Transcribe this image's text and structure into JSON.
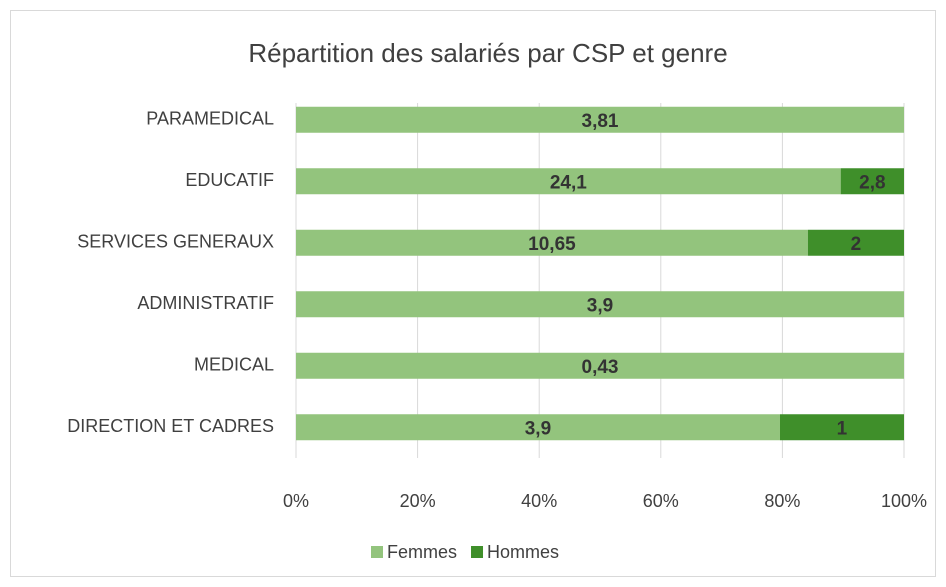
{
  "chart_data": {
    "type": "bar",
    "orientation": "horizontal",
    "stacked": "percent",
    "title": "Répartition des salariés par CSP et genre",
    "categories": [
      "PARAMEDICAL",
      "EDUCATIF",
      "SERVICES GENERAUX",
      "ADMINISTRATIF",
      "MEDICAL",
      "DIRECTION ET CADRES"
    ],
    "series": [
      {
        "name": "Femmes",
        "color": "#93c47d",
        "values": [
          3.81,
          24.1,
          10.65,
          3.9,
          0.43,
          3.9
        ],
        "value_labels": [
          "3,81",
          "24,1",
          "10,65",
          "3,9",
          "0,43",
          "3,9"
        ]
      },
      {
        "name": "Hommes",
        "color": "#3f8f2a",
        "values": [
          null,
          2.8,
          2,
          null,
          null,
          1
        ],
        "value_labels": [
          null,
          "2,8",
          "2",
          null,
          null,
          "1"
        ]
      }
    ],
    "xlim": [
      0,
      100
    ],
    "xticks": [
      {
        "value": 0,
        "label": "0%"
      },
      {
        "value": 20,
        "label": "20%"
      },
      {
        "value": 40,
        "label": "40%"
      },
      {
        "value": 60,
        "label": "60%"
      },
      {
        "value": 80,
        "label": "80%"
      },
      {
        "value": 100,
        "label": "100%"
      }
    ],
    "grid": true,
    "legend": "bottom"
  }
}
